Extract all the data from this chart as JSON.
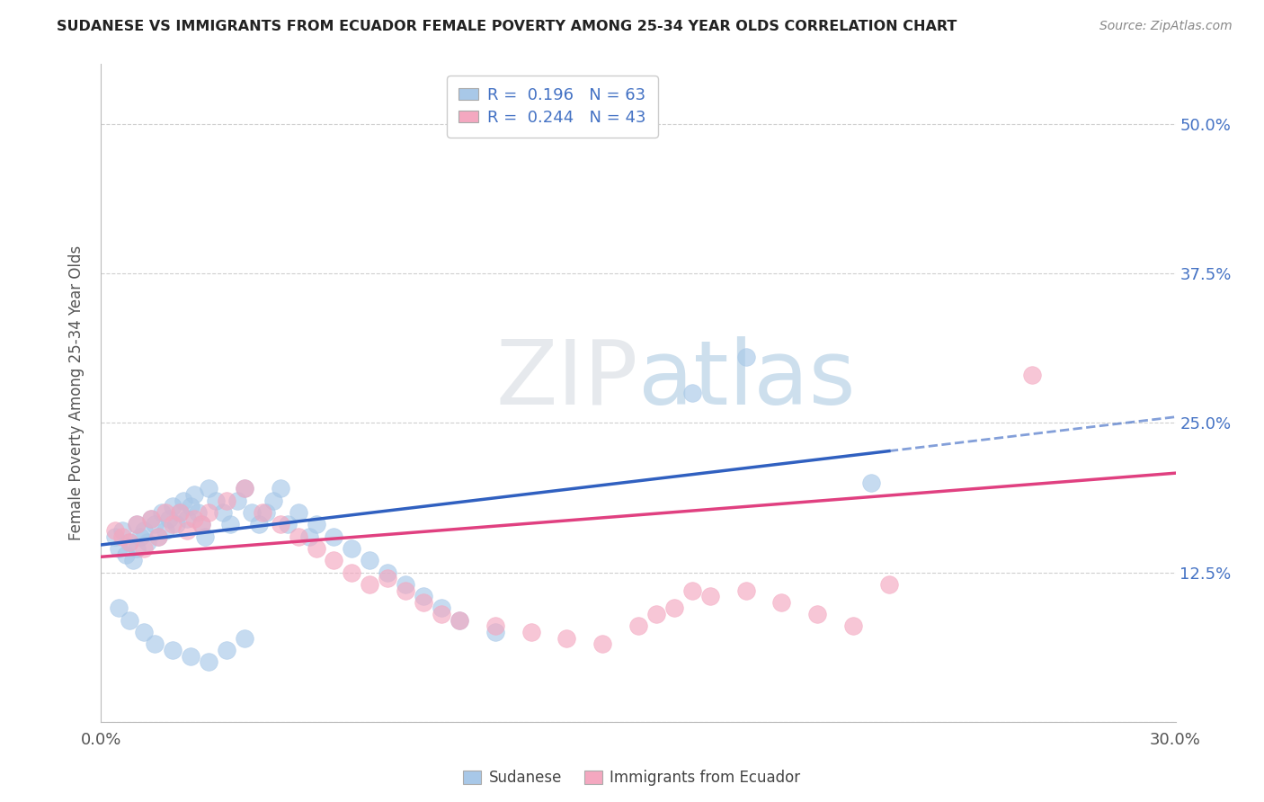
{
  "title": "SUDANESE VS IMMIGRANTS FROM ECUADOR FEMALE POVERTY AMONG 25-34 YEAR OLDS CORRELATION CHART",
  "source": "Source: ZipAtlas.com",
  "ylabel": "Female Poverty Among 25-34 Year Olds",
  "xlim": [
    0.0,
    0.3
  ],
  "ylim": [
    0.0,
    0.55
  ],
  "ytick_positions": [
    0.0,
    0.125,
    0.25,
    0.375,
    0.5
  ],
  "ytick_labels": [
    "",
    "12.5%",
    "25.0%",
    "37.5%",
    "50.0%"
  ],
  "legend_r1": "R =  0.196",
  "legend_n1": "N = 63",
  "legend_r2": "R =  0.244",
  "legend_n2": "N = 43",
  "color_blue": "#a8c8e8",
  "color_pink": "#f4a8c0",
  "trend_blue": "#3060c0",
  "trend_pink": "#e04080",
  "watermark": "ZIPatlas",
  "sudanese_x": [
    0.004,
    0.005,
    0.006,
    0.007,
    0.008,
    0.009,
    0.01,
    0.01,
    0.011,
    0.012,
    0.013,
    0.014,
    0.015,
    0.016,
    0.017,
    0.018,
    0.019,
    0.02,
    0.021,
    0.022,
    0.023,
    0.024,
    0.025,
    0.026,
    0.027,
    0.028,
    0.029,
    0.03,
    0.032,
    0.034,
    0.036,
    0.038,
    0.04,
    0.042,
    0.044,
    0.046,
    0.048,
    0.05,
    0.052,
    0.055,
    0.058,
    0.06,
    0.065,
    0.07,
    0.075,
    0.08,
    0.085,
    0.09,
    0.095,
    0.1,
    0.11,
    0.005,
    0.008,
    0.012,
    0.015,
    0.02,
    0.025,
    0.03,
    0.035,
    0.04,
    0.215,
    0.18,
    0.165
  ],
  "sudanese_y": [
    0.155,
    0.145,
    0.16,
    0.14,
    0.15,
    0.135,
    0.145,
    0.165,
    0.155,
    0.16,
    0.15,
    0.17,
    0.165,
    0.155,
    0.175,
    0.16,
    0.17,
    0.18,
    0.165,
    0.175,
    0.185,
    0.17,
    0.18,
    0.19,
    0.175,
    0.165,
    0.155,
    0.195,
    0.185,
    0.175,
    0.165,
    0.185,
    0.195,
    0.175,
    0.165,
    0.175,
    0.185,
    0.195,
    0.165,
    0.175,
    0.155,
    0.165,
    0.155,
    0.145,
    0.135,
    0.125,
    0.115,
    0.105,
    0.095,
    0.085,
    0.075,
    0.095,
    0.085,
    0.075,
    0.065,
    0.06,
    0.055,
    0.05,
    0.06,
    0.07,
    0.2,
    0.305,
    0.275
  ],
  "ecuador_x": [
    0.004,
    0.006,
    0.008,
    0.01,
    0.012,
    0.014,
    0.016,
    0.018,
    0.02,
    0.022,
    0.024,
    0.026,
    0.028,
    0.03,
    0.035,
    0.04,
    0.045,
    0.05,
    0.055,
    0.06,
    0.065,
    0.07,
    0.075,
    0.08,
    0.085,
    0.09,
    0.095,
    0.1,
    0.11,
    0.12,
    0.13,
    0.14,
    0.15,
    0.155,
    0.16,
    0.17,
    0.18,
    0.19,
    0.2,
    0.21,
    0.26,
    0.165,
    0.22
  ],
  "ecuador_y": [
    0.16,
    0.155,
    0.15,
    0.165,
    0.145,
    0.17,
    0.155,
    0.175,
    0.165,
    0.175,
    0.16,
    0.17,
    0.165,
    0.175,
    0.185,
    0.195,
    0.175,
    0.165,
    0.155,
    0.145,
    0.135,
    0.125,
    0.115,
    0.12,
    0.11,
    0.1,
    0.09,
    0.085,
    0.08,
    0.075,
    0.07,
    0.065,
    0.08,
    0.09,
    0.095,
    0.105,
    0.11,
    0.1,
    0.09,
    0.08,
    0.29,
    0.11,
    0.115
  ],
  "trend_blue_x0": 0.0,
  "trend_blue_y0": 0.148,
  "trend_blue_x1": 0.3,
  "trend_blue_y1": 0.255,
  "trend_blue_solid_end": 0.22,
  "trend_pink_x0": 0.0,
  "trend_pink_y0": 0.138,
  "trend_pink_x1": 0.3,
  "trend_pink_y1": 0.208
}
